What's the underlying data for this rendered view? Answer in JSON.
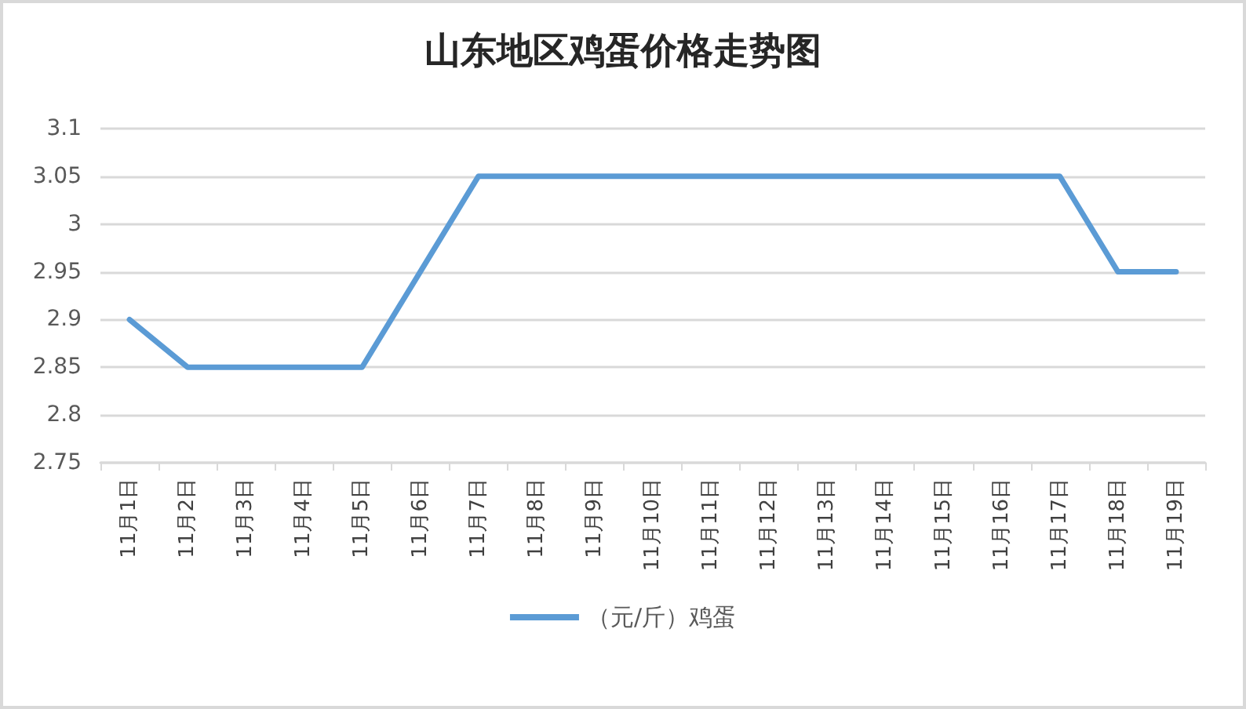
{
  "chart_data": {
    "type": "line",
    "title": "山东地区鸡蛋价格走势图",
    "categories": [
      "11月1日",
      "11月2日",
      "11月3日",
      "11月4日",
      "11月5日",
      "11月6日",
      "11月7日",
      "11月8日",
      "11月9日",
      "11月10日",
      "11月11日",
      "11月12日",
      "11月13日",
      "11月14日",
      "11月15日",
      "11月16日",
      "11月17日",
      "11月18日",
      "11月19日"
    ],
    "series": [
      {
        "name": "（元/斤）鸡蛋",
        "color": "#5b9bd5",
        "values": [
          2.9,
          2.85,
          2.85,
          2.85,
          2.85,
          2.95,
          3.05,
          3.05,
          3.05,
          3.05,
          3.05,
          3.05,
          3.05,
          3.05,
          3.05,
          3.05,
          3.05,
          2.95,
          2.95
        ]
      }
    ],
    "ylim": [
      2.75,
      3.1
    ],
    "yticks": [
      2.75,
      2.8,
      2.85,
      2.9,
      2.95,
      3,
      3.05,
      3.1
    ],
    "grid": "y",
    "legend": "bottom",
    "marker": "none",
    "line_style": "solid"
  }
}
